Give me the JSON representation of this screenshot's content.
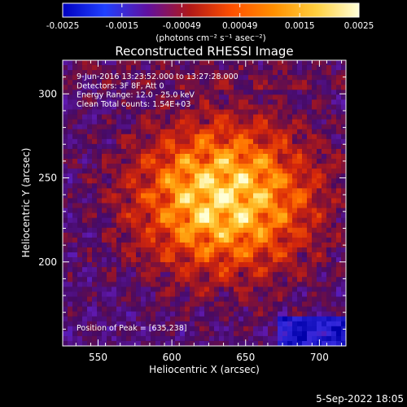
{
  "chart_data": {
    "type": "heatmap",
    "title": "Reconstructed RHESSI Image",
    "colorbar": {
      "range": [
        -0.0025,
        0.0025
      ],
      "tick_labels": [
        "-0.0025",
        "-0.0015",
        "-0.00049",
        "0.00049",
        "0.0015",
        "0.0025"
      ],
      "unit_label": "(photons cm⁻² s⁻¹ asec⁻²)",
      "colors": [
        "#0000c0",
        "#2040ff",
        "#6010a0",
        "#b01818",
        "#ff5000",
        "#ff9000",
        "#ffd040",
        "#ffffd8"
      ]
    },
    "xlabel": "Heliocentric X (arcsec)",
    "ylabel": "Heliocentric Y (arcsec)",
    "xlim": [
      526,
      718
    ],
    "ylim": [
      150,
      320
    ],
    "xticks": [
      550,
      600,
      650,
      700
    ],
    "yticks": [
      200,
      250,
      300
    ],
    "annotations": [
      "9-Jun-2016 13:23:52.000 to 13:27:28.000",
      "Detectors: 3F 8F, Att 0",
      "Energy Range: 12.0 - 25.0 keV",
      "Clean     Total counts: 1.54E+03"
    ],
    "peak_label": "Position of Peak = [635,238]",
    "peak_position": [
      635,
      238
    ]
  },
  "footer": {
    "date_label": "5-Sep-2022 18:05"
  }
}
